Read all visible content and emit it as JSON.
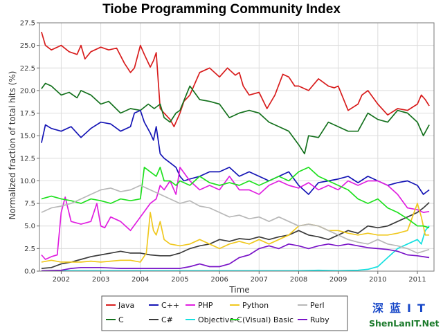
{
  "chart_data": {
    "type": "line",
    "title": "Tiobe Programming Community Index",
    "xlabel": "Time",
    "ylabel": "Normalized fraction of total hits (%)",
    "xlim": [
      2001.45,
      2011.42
    ],
    "ylim": [
      0,
      27.5
    ],
    "x_ticks": [
      "2002",
      "2003",
      "2004",
      "2005",
      "2006",
      "2007",
      "2008",
      "2009",
      "2010",
      "2011"
    ],
    "y_ticks": [
      "0.0",
      "2.5",
      "5.0",
      "7.5",
      "10.0",
      "12.5",
      "15.0",
      "17.5",
      "20.0",
      "22.5",
      "25.0",
      "27.5"
    ],
    "grid": true,
    "legend_position": "bottom",
    "series": [
      {
        "name": "Java",
        "color": "#d81c1c",
        "x": [
          2001.5,
          2001.6,
          2001.75,
          2002.0,
          2002.2,
          2002.4,
          2002.5,
          2002.6,
          2002.75,
          2003.0,
          2003.2,
          2003.4,
          2003.6,
          2003.75,
          2003.85,
          2004.0,
          2004.1,
          2004.25,
          2004.33,
          2004.4,
          2004.5,
          2004.6,
          2004.75,
          2004.85,
          2005.0,
          2005.1,
          2005.25,
          2005.4,
          2005.5,
          2005.75,
          2006.0,
          2006.2,
          2006.4,
          2006.5,
          2006.6,
          2006.75,
          2007.0,
          2007.2,
          2007.4,
          2007.6,
          2007.75,
          2007.9,
          2008.0,
          2008.25,
          2008.5,
          2008.75,
          2008.9,
          2009.0,
          2009.25,
          2009.5,
          2009.6,
          2009.75,
          2010.0,
          2010.25,
          2010.5,
          2010.75,
          2011.0,
          2011.1,
          2011.2,
          2011.3
        ],
        "values": [
          26.5,
          25.0,
          24.5,
          25.0,
          24.3,
          24.0,
          25.0,
          23.5,
          24.3,
          24.8,
          24.5,
          24.7,
          23.0,
          22.0,
          22.5,
          25.0,
          24.0,
          22.6,
          23.3,
          24.2,
          18.0,
          17.5,
          16.8,
          16.0,
          17.5,
          18.8,
          19.5,
          21.0,
          22.0,
          22.5,
          21.5,
          22.5,
          21.7,
          22.0,
          20.5,
          19.5,
          19.8,
          18.0,
          19.5,
          21.8,
          21.5,
          20.5,
          20.5,
          20.0,
          21.3,
          20.5,
          20.3,
          20.5,
          17.8,
          18.5,
          19.5,
          20.0,
          18.5,
          17.3,
          18.0,
          17.8,
          18.5,
          19.5,
          19.0,
          18.3
        ]
      },
      {
        "name": "C",
        "color": "#14711d",
        "x": [
          2001.5,
          2001.6,
          2001.75,
          2002.0,
          2002.2,
          2002.4,
          2002.5,
          2002.75,
          2003.0,
          2003.2,
          2003.5,
          2003.75,
          2004.0,
          2004.2,
          2004.35,
          2004.5,
          2004.6,
          2004.75,
          2004.9,
          2005.0,
          2005.25,
          2005.5,
          2005.75,
          2006.0,
          2006.25,
          2006.5,
          2006.75,
          2007.0,
          2007.25,
          2007.5,
          2007.75,
          2008.0,
          2008.15,
          2008.25,
          2008.5,
          2008.75,
          2009.0,
          2009.25,
          2009.5,
          2009.75,
          2010.0,
          2010.25,
          2010.5,
          2010.75,
          2011.0,
          2011.15,
          2011.3
        ],
        "values": [
          20.2,
          20.8,
          20.5,
          19.5,
          19.8,
          19.2,
          20.0,
          19.5,
          18.5,
          18.8,
          17.5,
          18.0,
          17.8,
          18.5,
          18.0,
          18.5,
          17.0,
          16.5,
          17.5,
          17.8,
          20.5,
          19.0,
          18.8,
          18.5,
          17.0,
          17.5,
          17.8,
          17.5,
          16.5,
          16.0,
          15.5,
          14.0,
          13.0,
          15.0,
          14.8,
          16.5,
          16.0,
          15.5,
          15.5,
          17.5,
          16.8,
          16.5,
          17.8,
          17.5,
          16.5,
          15.0,
          16.2
        ]
      },
      {
        "name": "C++",
        "color": "#1414b5",
        "x": [
          2001.5,
          2001.6,
          2001.75,
          2002.0,
          2002.25,
          2002.5,
          2002.75,
          2003.0,
          2003.25,
          2003.5,
          2003.75,
          2003.85,
          2004.0,
          2004.1,
          2004.25,
          2004.33,
          2004.4,
          2004.5,
          2004.6,
          2004.75,
          2004.9,
          2005.0,
          2005.1,
          2005.25,
          2005.5,
          2005.75,
          2006.0,
          2006.25,
          2006.5,
          2006.75,
          2007.0,
          2007.25,
          2007.5,
          2007.75,
          2008.0,
          2008.25,
          2008.5,
          2008.75,
          2009.0,
          2009.25,
          2009.5,
          2009.75,
          2010.0,
          2010.25,
          2010.5,
          2010.75,
          2011.0,
          2011.15,
          2011.3
        ],
        "values": [
          14.2,
          16.2,
          15.8,
          15.5,
          16.0,
          14.8,
          15.8,
          16.5,
          16.3,
          15.5,
          16.0,
          17.5,
          17.8,
          16.5,
          15.3,
          14.5,
          16.0,
          13.0,
          12.5,
          12.0,
          11.5,
          10.5,
          10.0,
          10.2,
          10.5,
          11.0,
          11.0,
          11.5,
          10.5,
          11.0,
          10.5,
          10.0,
          10.5,
          11.0,
          9.5,
          8.5,
          9.8,
          10.0,
          10.2,
          10.5,
          9.8,
          10.5,
          10.0,
          9.5,
          9.8,
          10.0,
          9.5,
          8.5,
          9.0
        ]
      },
      {
        "name": "C#",
        "color": "#3a3a3a",
        "x": [
          2001.5,
          2001.75,
          2002.0,
          2002.25,
          2002.5,
          2002.75,
          2003.0,
          2003.25,
          2003.5,
          2003.75,
          2004.0,
          2004.25,
          2004.5,
          2004.75,
          2005.0,
          2005.25,
          2005.5,
          2005.75,
          2006.0,
          2006.25,
          2006.5,
          2006.75,
          2007.0,
          2007.25,
          2007.5,
          2007.75,
          2008.0,
          2008.25,
          2008.5,
          2008.75,
          2009.0,
          2009.25,
          2009.5,
          2009.75,
          2010.0,
          2010.25,
          2010.5,
          2010.75,
          2011.0,
          2011.15,
          2011.3
        ],
        "values": [
          0.3,
          0.4,
          0.8,
          1.0,
          1.3,
          1.6,
          1.8,
          2.0,
          2.2,
          2.0,
          2.0,
          1.8,
          1.7,
          1.7,
          2.0,
          2.5,
          2.8,
          3.0,
          3.5,
          3.3,
          3.6,
          3.5,
          3.8,
          3.5,
          3.8,
          4.0,
          4.5,
          4.0,
          3.8,
          3.5,
          4.0,
          4.5,
          4.2,
          5.0,
          4.8,
          5.0,
          5.5,
          6.0,
          6.5,
          7.0,
          7.6
        ]
      },
      {
        "name": "PHP",
        "color": "#e01ee0",
        "x": [
          2001.5,
          2001.6,
          2001.75,
          2001.9,
          2002.0,
          2002.1,
          2002.25,
          2002.5,
          2002.75,
          2002.9,
          2003.0,
          2003.1,
          2003.25,
          2003.5,
          2003.75,
          2004.0,
          2004.25,
          2004.4,
          2004.5,
          2004.6,
          2004.75,
          2004.9,
          2005.0,
          2005.25,
          2005.5,
          2005.75,
          2006.0,
          2006.25,
          2006.5,
          2006.75,
          2007.0,
          2007.25,
          2007.5,
          2007.75,
          2008.0,
          2008.25,
          2008.5,
          2008.75,
          2009.0,
          2009.25,
          2009.5,
          2009.75,
          2010.0,
          2010.25,
          2010.5,
          2010.75,
          2011.0,
          2011.15,
          2011.3
        ],
        "values": [
          1.8,
          1.3,
          1.6,
          1.8,
          6.5,
          8.2,
          5.5,
          5.2,
          5.5,
          7.5,
          5.0,
          4.8,
          6.0,
          5.5,
          4.5,
          6.0,
          7.5,
          8.0,
          9.5,
          9.0,
          10.0,
          8.5,
          11.5,
          10.0,
          9.0,
          9.5,
          9.0,
          10.5,
          9.0,
          9.0,
          8.5,
          9.5,
          10.0,
          9.5,
          9.2,
          9.8,
          9.0,
          9.5,
          9.0,
          10.0,
          9.5,
          10.0,
          10.0,
          9.5,
          8.5,
          7.0,
          6.8,
          6.5,
          6.6
        ]
      },
      {
        "name": "Objective-C",
        "color": "#14e0e0",
        "x": [
          2001.5,
          2002.0,
          2003.0,
          2004.0,
          2005.0,
          2006.0,
          2007.0,
          2008.0,
          2008.5,
          2009.0,
          2009.5,
          2009.75,
          2010.0,
          2010.25,
          2010.5,
          2010.75,
          2011.0,
          2011.1,
          2011.2,
          2011.3
        ],
        "values": [
          0.05,
          0.05,
          0.05,
          0.05,
          0.05,
          0.05,
          0.05,
          0.05,
          0.1,
          0.05,
          0.1,
          0.2,
          0.5,
          1.5,
          2.5,
          3.0,
          3.5,
          3.0,
          4.5,
          5.0
        ]
      },
      {
        "name": "Python",
        "color": "#f0c81e",
        "x": [
          2001.5,
          2001.75,
          2002.0,
          2002.25,
          2002.5,
          2002.75,
          2003.0,
          2003.25,
          2003.5,
          2003.75,
          2004.0,
          2004.15,
          2004.25,
          2004.33,
          2004.4,
          2004.5,
          2004.6,
          2004.75,
          2005.0,
          2005.25,
          2005.5,
          2005.75,
          2006.0,
          2006.25,
          2006.5,
          2006.75,
          2007.0,
          2007.25,
          2007.5,
          2007.75,
          2008.0,
          2008.25,
          2008.5,
          2008.75,
          2009.0,
          2009.25,
          2009.5,
          2009.75,
          2010.0,
          2010.25,
          2010.5,
          2010.75,
          2011.0,
          2011.1,
          2011.2,
          2011.3
        ],
        "values": [
          1.0,
          1.2,
          1.0,
          1.0,
          1.0,
          1.1,
          1.0,
          1.1,
          1.2,
          1.2,
          1.0,
          2.0,
          6.5,
          4.5,
          4.0,
          5.5,
          3.5,
          3.0,
          2.8,
          3.0,
          3.5,
          3.0,
          2.5,
          3.0,
          3.3,
          3.0,
          3.5,
          3.0,
          3.5,
          4.0,
          5.0,
          5.2,
          5.0,
          4.5,
          4.5,
          4.2,
          4.0,
          4.2,
          4.0,
          4.0,
          4.2,
          4.5,
          7.5,
          6.0,
          4.0,
          4.0
        ]
      },
      {
        "name": "(Visual) Basic",
        "color": "#1ee01e",
        "x": [
          2001.5,
          2001.75,
          2002.0,
          2002.25,
          2002.5,
          2002.75,
          2003.0,
          2003.25,
          2003.5,
          2003.75,
          2004.0,
          2004.1,
          2004.25,
          2004.4,
          2004.5,
          2004.6,
          2004.75,
          2004.9,
          2005.0,
          2005.25,
          2005.5,
          2005.75,
          2006.0,
          2006.25,
          2006.5,
          2006.75,
          2007.0,
          2007.25,
          2007.5,
          2007.75,
          2008.0,
          2008.25,
          2008.5,
          2008.75,
          2009.0,
          2009.25,
          2009.5,
          2009.75,
          2010.0,
          2010.25,
          2010.5,
          2010.75,
          2011.0,
          2011.15,
          2011.3
        ],
        "values": [
          8.0,
          8.3,
          8.0,
          7.8,
          7.5,
          8.0,
          7.8,
          7.5,
          8.0,
          7.8,
          8.0,
          11.5,
          11.0,
          10.5,
          11.5,
          10.0,
          10.0,
          9.5,
          10.0,
          9.5,
          10.5,
          9.8,
          9.5,
          9.8,
          9.5,
          10.0,
          9.5,
          10.0,
          10.5,
          10.0,
          11.0,
          11.5,
          10.5,
          10.0,
          9.5,
          9.0,
          8.0,
          7.5,
          8.0,
          7.0,
          6.5,
          5.8,
          5.0,
          5.0,
          4.8
        ]
      },
      {
        "name": "Perl",
        "color": "#b8b8b8",
        "x": [
          2001.5,
          2001.75,
          2002.0,
          2002.25,
          2002.5,
          2002.75,
          2003.0,
          2003.25,
          2003.5,
          2003.75,
          2004.0,
          2004.25,
          2004.5,
          2004.75,
          2005.0,
          2005.25,
          2005.5,
          2005.75,
          2006.0,
          2006.25,
          2006.5,
          2006.75,
          2007.0,
          2007.25,
          2007.5,
          2007.75,
          2008.0,
          2008.25,
          2008.5,
          2008.75,
          2009.0,
          2009.25,
          2009.5,
          2009.75,
          2010.0,
          2010.25,
          2010.5,
          2010.75,
          2011.0,
          2011.15,
          2011.3
        ],
        "values": [
          6.5,
          7.0,
          7.2,
          7.5,
          8.0,
          8.5,
          9.0,
          9.2,
          8.8,
          9.0,
          9.5,
          9.0,
          8.5,
          8.0,
          7.5,
          7.8,
          7.2,
          7.0,
          6.5,
          6.0,
          6.2,
          5.8,
          6.0,
          5.5,
          6.0,
          5.5,
          5.0,
          5.2,
          5.0,
          4.5,
          4.0,
          3.5,
          3.2,
          3.0,
          3.5,
          3.0,
          2.8,
          2.5,
          2.0,
          2.2,
          2.4
        ]
      },
      {
        "name": "Ruby",
        "color": "#7a14c8",
        "x": [
          2001.5,
          2002.0,
          2002.25,
          2002.5,
          2003.0,
          2003.5,
          2004.0,
          2004.5,
          2005.0,
          2005.25,
          2005.5,
          2005.75,
          2006.0,
          2006.25,
          2006.5,
          2006.75,
          2007.0,
          2007.25,
          2007.5,
          2007.75,
          2008.0,
          2008.25,
          2008.5,
          2008.75,
          2009.0,
          2009.25,
          2009.5,
          2009.75,
          2010.0,
          2010.25,
          2010.5,
          2010.75,
          2011.0,
          2011.15,
          2011.3
        ],
        "values": [
          0.05,
          0.1,
          0.3,
          0.4,
          0.4,
          0.3,
          0.3,
          0.3,
          0.3,
          0.5,
          0.8,
          0.5,
          0.5,
          0.8,
          1.5,
          1.8,
          2.5,
          2.8,
          2.5,
          3.0,
          2.8,
          2.5,
          2.8,
          3.0,
          2.8,
          3.0,
          2.8,
          2.6,
          2.5,
          2.4,
          2.2,
          1.8,
          1.7,
          1.6,
          1.5
        ]
      }
    ],
    "legend_order": [
      "Java",
      "C++",
      "PHP",
      "Python",
      "Perl",
      "C",
      "C#",
      "Objective-C",
      "(Visual) Basic",
      "Ruby"
    ]
  },
  "watermark": {
    "line1": "深蓝IT",
    "line2": "ShenLanIT.Net"
  }
}
